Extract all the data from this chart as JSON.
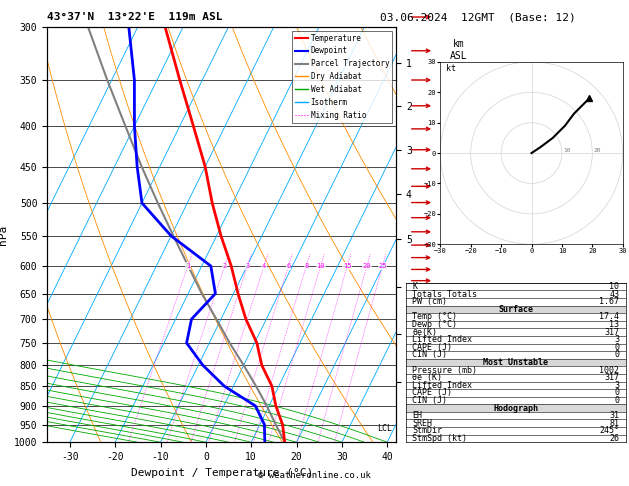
{
  "title_left": "43°37'N  13°22'E  119m ASL",
  "title_right": "03.06.2024  12GMT  (Base: 12)",
  "xlabel": "Dewpoint / Temperature (°C)",
  "ylabel_left": "hPa",
  "ylabel_right_label": "km\nASL",
  "pressure_levels": [
    300,
    350,
    400,
    450,
    500,
    550,
    600,
    650,
    700,
    750,
    800,
    850,
    900,
    950,
    1000
  ],
  "temp_ticks": [
    -30,
    -20,
    -10,
    0,
    10,
    20,
    30,
    40
  ],
  "xlim": [
    -35,
    42
  ],
  "skew_factor": 45.0,
  "temp_profile": {
    "pressure": [
      1000,
      950,
      900,
      850,
      800,
      750,
      700,
      650,
      600,
      550,
      500,
      450,
      400,
      350,
      300
    ],
    "temp": [
      17.4,
      15.0,
      11.5,
      8.5,
      4.0,
      0.5,
      -4.5,
      -9.0,
      -13.5,
      -19.0,
      -24.5,
      -30.0,
      -37.0,
      -45.0,
      -54.0
    ]
  },
  "dewp_profile": {
    "pressure": [
      1000,
      950,
      900,
      850,
      800,
      750,
      700,
      650,
      600,
      550,
      500,
      450,
      400,
      350,
      300
    ],
    "temp": [
      13.0,
      11.0,
      7.0,
      -2.0,
      -9.0,
      -15.0,
      -16.5,
      -14.0,
      -18.0,
      -30.0,
      -40.0,
      -45.0,
      -50.0,
      -55.0,
      -62.0
    ]
  },
  "parcel_profile": {
    "pressure": [
      1000,
      950,
      900,
      850,
      800,
      750,
      700,
      650,
      600,
      550,
      500,
      450,
      400,
      350,
      300
    ],
    "temp": [
      17.4,
      13.5,
      9.5,
      5.0,
      0.0,
      -5.5,
      -11.0,
      -17.0,
      -23.0,
      -29.5,
      -36.5,
      -44.0,
      -52.0,
      -61.0,
      -71.0
    ]
  },
  "lcl_pressure": 960,
  "temp_color": "#ff0000",
  "dewp_color": "#0000ff",
  "parcel_color": "#808080",
  "dry_adiabat_color": "#ff8c00",
  "wet_adiabat_color": "#00aa00",
  "isotherm_color": "#00aaff",
  "mixing_ratio_color": "#ff00ff",
  "bg_color": "#ffffff",
  "km_ticks": [
    1,
    2,
    3,
    4,
    5,
    6,
    7,
    8
  ],
  "km_pressures": [
    900,
    795,
    700,
    616,
    540,
    471,
    411,
    357
  ],
  "hodo_u": [
    0,
    3,
    7,
    11,
    14,
    17,
    19
  ],
  "hodo_v": [
    0,
    2,
    5,
    9,
    13,
    16,
    18
  ],
  "wind_barb_pressures": [
    300,
    350,
    400,
    450,
    500,
    550,
    600,
    650,
    700,
    750,
    800,
    850,
    900,
    950,
    1000
  ],
  "mixing_ratio_vals": [
    1,
    2,
    3,
    4,
    6,
    8,
    10,
    15,
    20,
    25
  ],
  "info_rows": [
    {
      "label": "K",
      "value": "10",
      "header": false
    },
    {
      "label": "Totals Totals",
      "value": "43",
      "header": false
    },
    {
      "label": "PW (cm)",
      "value": "1.67",
      "header": false
    },
    {
      "label": "Surface",
      "value": "",
      "header": true
    },
    {
      "label": "Temp (°C)",
      "value": "17.4",
      "header": false
    },
    {
      "label": "Dewp (°C)",
      "value": "13",
      "header": false
    },
    {
      "label": "θe(K)",
      "value": "317",
      "header": false
    },
    {
      "label": "Lifted Index",
      "value": "3",
      "header": false
    },
    {
      "label": "CAPE (J)",
      "value": "0",
      "header": false
    },
    {
      "label": "CIN (J)",
      "value": "0",
      "header": false
    },
    {
      "label": "Most Unstable",
      "value": "",
      "header": true
    },
    {
      "label": "Pressure (mb)",
      "value": "1002",
      "header": false
    },
    {
      "label": "θe (K)",
      "value": "317",
      "header": false
    },
    {
      "label": "Lifted Index",
      "value": "3",
      "header": false
    },
    {
      "label": "CAPE (J)",
      "value": "0",
      "header": false
    },
    {
      "label": "CIN (J)",
      "value": "0",
      "header": false
    },
    {
      "label": "Hodograph",
      "value": "",
      "header": true
    },
    {
      "label": "EH",
      "value": "31",
      "header": false
    },
    {
      "label": "SREH",
      "value": "81",
      "header": false
    },
    {
      "label": "StmDir",
      "value": "245°",
      "header": false
    },
    {
      "label": "StmSpd (kt)",
      "value": "26",
      "header": false
    }
  ],
  "footer": "© weatheronline.co.uk"
}
